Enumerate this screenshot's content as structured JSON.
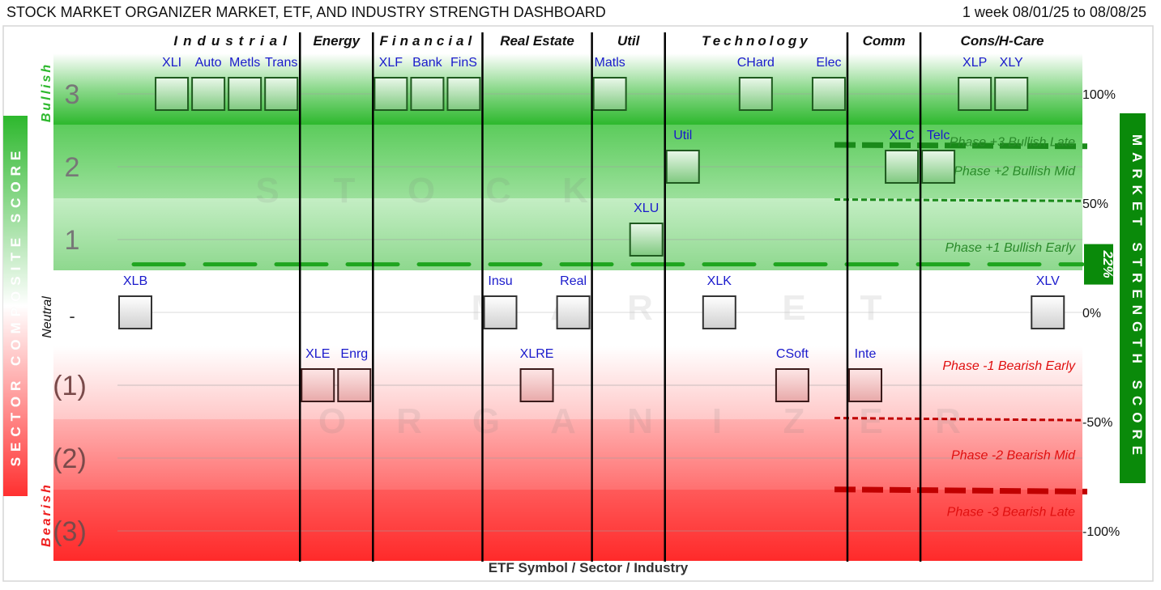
{
  "header": {
    "title": "STOCK MARKET ORGANIZER MARKET, ETF, AND INDUSTRY STRENGTH DASHBOARD",
    "date_range": "1 week 08/01/25 to 08/08/25"
  },
  "chart_data": {
    "type": "scatter",
    "title": "STOCK MARKET ORGANIZER MARKET, ETF, AND INDUSTRY STRENGTH DASHBOARD",
    "xlabel": "ETF Symbol / Sector / Industry",
    "left_axis_label": "SECTOR COMPOSITE SCORE",
    "right_axis_label": "MARKET STRENGTH SCORE",
    "ylim": [
      -3.4,
      3.4
    ],
    "sectors": [
      "Industrial",
      "Energy",
      "Financial",
      "Real Estate",
      "Util",
      "Technology",
      "Comm",
      "Cons/H-Care"
    ],
    "sector_lines_after_column": [
      4,
      6,
      9,
      12,
      14,
      19,
      21
    ],
    "column_count": 25,
    "left_ticks": [
      {
        "value": 3,
        "label": "3"
      },
      {
        "value": 2,
        "label": "2"
      },
      {
        "value": 1,
        "label": "1"
      },
      {
        "value": 0,
        "label": "-"
      },
      {
        "value": -1,
        "label": "(1)"
      },
      {
        "value": -2,
        "label": "(2)"
      },
      {
        "value": -3,
        "label": "(3)"
      }
    ],
    "zone_labels": {
      "bullish": "Bullish",
      "neutral": "Neutral",
      "bearish": "Bearish"
    },
    "right_ticks": [
      {
        "value": 3,
        "label": "100%"
      },
      {
        "value": 1.5,
        "label": "50%"
      },
      {
        "value": 0,
        "label": "0%"
      },
      {
        "value": -1.5,
        "label": "-50%"
      },
      {
        "value": -3,
        "label": "-100%"
      }
    ],
    "market_strength": {
      "value": 0.66,
      "label": "22%"
    },
    "phases": [
      {
        "label": "Phase +3 Bullish Late",
        "value": 2.35
      },
      {
        "label": "Phase +2 Bullish Mid",
        "value": 1.95
      },
      {
        "label": "Phase +1 Bullish Early",
        "value": 0.9
      },
      {
        "label": "Phase -1 Bearish Early",
        "value": -0.72
      },
      {
        "label": "Phase -2 Bearish Mid",
        "value": -1.95
      },
      {
        "label": "Phase -3 Bearish Late",
        "value": -2.73
      }
    ],
    "thresholds": [
      {
        "kind": "bull_late",
        "y_start": 2.3,
        "y_end": 2.28,
        "color": "#1a8a1a"
      },
      {
        "kind": "bull_mid",
        "y_start": 1.55,
        "y_end": 1.53,
        "color": "#1a8a1a"
      },
      {
        "kind": "market",
        "y_start": 0.66,
        "y_end": 0.66,
        "color": "#1fa51f"
      },
      {
        "kind": "bear_mid",
        "y_start": -1.45,
        "y_end": -1.48,
        "color": "#c00000"
      },
      {
        "kind": "bear_late",
        "y_start": -2.43,
        "y_end": -2.46,
        "color": "#c00000"
      }
    ],
    "points": [
      {
        "label": "XLI",
        "col": 1,
        "score": 3
      },
      {
        "label": "Auto",
        "col": 2,
        "score": 3
      },
      {
        "label": "Metls",
        "col": 3,
        "score": 3
      },
      {
        "label": "Trans",
        "col": 4,
        "score": 3
      },
      {
        "label": "XLF",
        "col": 7,
        "score": 3
      },
      {
        "label": "Bank",
        "col": 8,
        "score": 3
      },
      {
        "label": "FinS",
        "col": 9,
        "score": 3
      },
      {
        "label": "Matls",
        "col": 13,
        "score": 3
      },
      {
        "label": "CHard",
        "col": 17,
        "score": 3
      },
      {
        "label": "Elec",
        "col": 19,
        "score": 3
      },
      {
        "label": "XLP",
        "col": 23,
        "score": 3
      },
      {
        "label": "XLY",
        "col": 24,
        "score": 3
      },
      {
        "label": "Util",
        "col": 15,
        "score": 2
      },
      {
        "label": "XLC",
        "col": 21,
        "score": 2
      },
      {
        "label": "Telc",
        "col": 22,
        "score": 2
      },
      {
        "label": "XLU",
        "col": 14,
        "score": 1
      },
      {
        "label": "XLB",
        "col": 0,
        "score": 0
      },
      {
        "label": "Insu",
        "col": 10,
        "score": 0
      },
      {
        "label": "Real",
        "col": 12,
        "score": 0
      },
      {
        "label": "XLK",
        "col": 16,
        "score": 0
      },
      {
        "label": "XLV",
        "col": 25,
        "score": 0
      },
      {
        "label": "XLE",
        "col": 5,
        "score": -1
      },
      {
        "label": "Enrg",
        "col": 6,
        "score": -1
      },
      {
        "label": "XLRE",
        "col": 11,
        "score": -1
      },
      {
        "label": "CSoft",
        "col": 18,
        "score": -1
      },
      {
        "label": "Inte",
        "col": 20,
        "score": -1
      }
    ],
    "watermark": [
      "STOCK",
      "MARKET",
      "ORGANIZER"
    ],
    "colors": {
      "bull": "#2db82d",
      "bear": "#ff3030",
      "sector_line": "#000000",
      "label": "#1a1acc"
    }
  }
}
